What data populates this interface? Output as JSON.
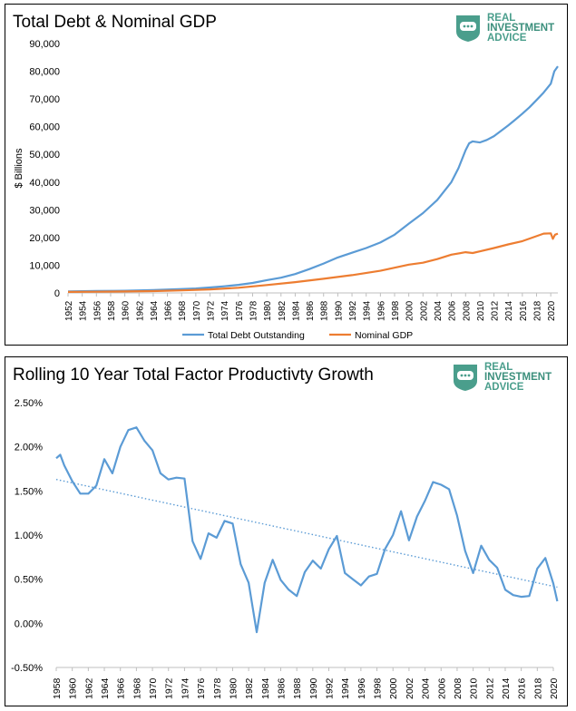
{
  "brand": {
    "line1": "REAL",
    "line2": "INVESTMENT",
    "line3": "ADVICE",
    "color": "#4a9e8c",
    "icon": "chat-bubble-shield-icon"
  },
  "chart_data": [
    {
      "type": "line",
      "title": "Total Debt & Nominal GDP",
      "ylabel": "$ Billions",
      "xlabel": "",
      "ylim": [
        0,
        90000
      ],
      "yticks": [
        "0",
        "10,000",
        "20,000",
        "30,000",
        "40,000",
        "50,000",
        "60,000",
        "70,000",
        "80,000",
        "90,000"
      ],
      "xlim": [
        1952,
        2021
      ],
      "xticks": [
        "1952",
        "1954",
        "1956",
        "1958",
        "1960",
        "1962",
        "1964",
        "1966",
        "1968",
        "1970",
        "1972",
        "1974",
        "1976",
        "1978",
        "1980",
        "1982",
        "1984",
        "1986",
        "1988",
        "1990",
        "1992",
        "1994",
        "1996",
        "1998",
        "2000",
        "2002",
        "2004",
        "2006",
        "2008",
        "2010",
        "2012",
        "2014",
        "2016",
        "2018",
        "2020"
      ],
      "legend_position": "bottom",
      "grid": false,
      "series": [
        {
          "name": "Total Debt Outstanding",
          "color": "#5b9bd5",
          "points": [
            [
              1952,
              520
            ],
            [
              1956,
              680
            ],
            [
              1960,
              800
            ],
            [
              1964,
              1050
            ],
            [
              1968,
              1400
            ],
            [
              1970,
              1600
            ],
            [
              1972,
              1950
            ],
            [
              1974,
              2400
            ],
            [
              1976,
              2900
            ],
            [
              1978,
              3600
            ],
            [
              1980,
              4600
            ],
            [
              1982,
              5500
            ],
            [
              1984,
              6800
            ],
            [
              1986,
              8600
            ],
            [
              1988,
              10600
            ],
            [
              1990,
              12800
            ],
            [
              1992,
              14500
            ],
            [
              1994,
              16200
            ],
            [
              1996,
              18200
            ],
            [
              1998,
              21000
            ],
            [
              2000,
              25000
            ],
            [
              2002,
              28800
            ],
            [
              2004,
              33500
            ],
            [
              2006,
              40000
            ],
            [
              2007,
              45000
            ],
            [
              2008,
              51500
            ],
            [
              2008.5,
              54000
            ],
            [
              2009,
              54700
            ],
            [
              2010,
              54300
            ],
            [
              2011,
              55200
            ],
            [
              2012,
              56600
            ],
            [
              2013,
              58500
            ],
            [
              2014,
              60400
            ],
            [
              2015,
              62500
            ],
            [
              2016,
              64700
            ],
            [
              2017,
              67000
            ],
            [
              2018,
              69600
            ],
            [
              2019,
              72300
            ],
            [
              2020,
              75500
            ],
            [
              2020.5,
              80000
            ],
            [
              2021,
              81800
            ]
          ]
        },
        {
          "name": "Nominal GDP",
          "color": "#ed7d31",
          "points": [
            [
              1952,
              360
            ],
            [
              1956,
              430
            ],
            [
              1960,
              530
            ],
            [
              1964,
              660
            ],
            [
              1968,
              920
            ],
            [
              1972,
              1280
            ],
            [
              1976,
              1870
            ],
            [
              1980,
              2850
            ],
            [
              1984,
              3900
            ],
            [
              1988,
              5100
            ],
            [
              1992,
              6400
            ],
            [
              1996,
              8000
            ],
            [
              2000,
              10200
            ],
            [
              2002,
              10900
            ],
            [
              2004,
              12200
            ],
            [
              2006,
              13800
            ],
            [
              2008,
              14700
            ],
            [
              2009,
              14400
            ],
            [
              2010,
              15000
            ],
            [
              2012,
              16200
            ],
            [
              2014,
              17500
            ],
            [
              2016,
              18700
            ],
            [
              2018,
              20500
            ],
            [
              2019,
              21400
            ],
            [
              2020,
              21500
            ],
            [
              2020.3,
              19500
            ],
            [
              2020.6,
              21000
            ],
            [
              2021,
              21400
            ]
          ]
        }
      ]
    },
    {
      "type": "line",
      "title": "Rolling 10 Year Total Factor Productivty Growth",
      "ylabel": "",
      "xlabel": "",
      "ylim": [
        -0.5,
        2.5
      ],
      "yticks": [
        "-0.50%",
        "0.00%",
        "0.50%",
        "1.00%",
        "1.50%",
        "2.00%",
        "2.50%"
      ],
      "xlim": [
        1958,
        2020
      ],
      "xticks": [
        "1958",
        "1960",
        "1962",
        "1964",
        "1966",
        "1968",
        "1970",
        "1972",
        "1974",
        "1976",
        "1978",
        "1980",
        "1982",
        "1984",
        "1986",
        "1988",
        "1990",
        "1992",
        "1994",
        "1996",
        "1998",
        "2000",
        "2002",
        "2004",
        "2006",
        "2008",
        "2010",
        "2012",
        "2014",
        "2016",
        "2018",
        "2020"
      ],
      "grid": false,
      "series": [
        {
          "color": "#5b9bd5",
          "points": [
            [
              1958,
              1.87
            ],
            [
              1958.5,
              1.91
            ],
            [
              1959,
              1.79
            ],
            [
              1960,
              1.61
            ],
            [
              1961,
              1.47
            ],
            [
              1962,
              1.47
            ],
            [
              1963,
              1.56
            ],
            [
              1964,
              1.86
            ],
            [
              1965,
              1.7
            ],
            [
              1966,
              2.0
            ],
            [
              1967,
              2.19
            ],
            [
              1968,
              2.22
            ],
            [
              1969,
              2.07
            ],
            [
              1970,
              1.96
            ],
            [
              1971,
              1.7
            ],
            [
              1972,
              1.63
            ],
            [
              1973,
              1.65
            ],
            [
              1974,
              1.64
            ],
            [
              1975,
              0.93
            ],
            [
              1976,
              0.73
            ],
            [
              1977,
              1.02
            ],
            [
              1978,
              0.97
            ],
            [
              1979,
              1.16
            ],
            [
              1980,
              1.13
            ],
            [
              1981,
              0.67
            ],
            [
              1982,
              0.46
            ],
            [
              1983,
              -0.1
            ],
            [
              1984,
              0.46
            ],
            [
              1985,
              0.72
            ],
            [
              1986,
              0.49
            ],
            [
              1987,
              0.38
            ],
            [
              1988,
              0.31
            ],
            [
              1989,
              0.58
            ],
            [
              1990,
              0.71
            ],
            [
              1991,
              0.62
            ],
            [
              1992,
              0.84
            ],
            [
              1993,
              0.99
            ],
            [
              1994,
              0.57
            ],
            [
              1995,
              0.5
            ],
            [
              1996,
              0.43
            ],
            [
              1997,
              0.53
            ],
            [
              1998,
              0.56
            ],
            [
              1999,
              0.84
            ],
            [
              2000,
              1.0
            ],
            [
              2001,
              1.27
            ],
            [
              2002,
              0.94
            ],
            [
              2003,
              1.21
            ],
            [
              2004,
              1.39
            ],
            [
              2005,
              1.6
            ],
            [
              2006,
              1.57
            ],
            [
              2007,
              1.52
            ],
            [
              2008,
              1.22
            ],
            [
              2009,
              0.82
            ],
            [
              2010,
              0.57
            ],
            [
              2011,
              0.88
            ],
            [
              2012,
              0.72
            ],
            [
              2013,
              0.63
            ],
            [
              2014,
              0.38
            ],
            [
              2015,
              0.32
            ],
            [
              2016,
              0.3
            ],
            [
              2017,
              0.31
            ],
            [
              2018,
              0.62
            ],
            [
              2019,
              0.74
            ],
            [
              2020,
              0.45
            ],
            [
              2020.5,
              0.25
            ]
          ]
        }
      ],
      "trendline": {
        "style": "dotted",
        "color": "#5b9bd5",
        "points": [
          [
            1958,
            1.63
          ],
          [
            2020.5,
            0.41
          ]
        ]
      }
    }
  ]
}
